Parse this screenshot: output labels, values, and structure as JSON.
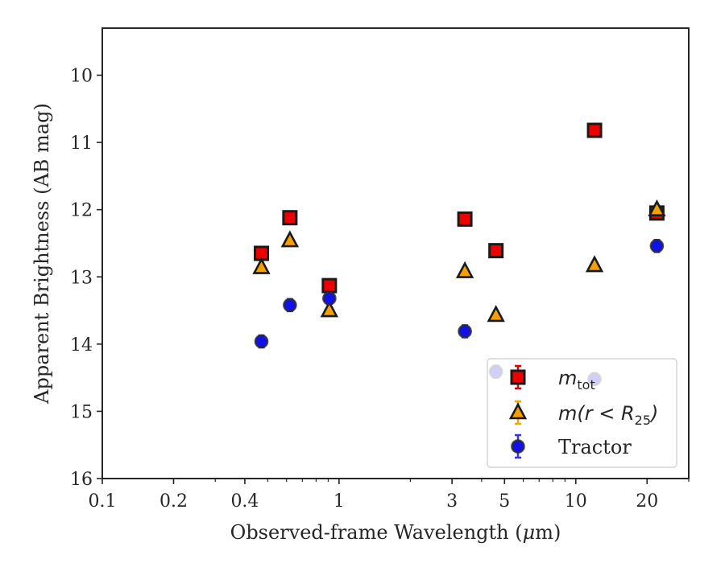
{
  "chart_data": {
    "type": "scatter",
    "xlabel_prefix": "Observed-frame Wavelength (",
    "xlabel_mu": "μ",
    "xlabel_suffix": "m)",
    "ylabel": "Apparent Brightness (AB mag)",
    "x_scale": "log",
    "xlim": [
      0.1,
      30
    ],
    "ylim": [
      16,
      9.3
    ],
    "y_inverted": true,
    "grid": false,
    "legend_position": "lower-right",
    "x_ticks": [
      {
        "value": 0.1,
        "label": "0.1"
      },
      {
        "value": 0.2,
        "label": "0.2"
      },
      {
        "value": 0.4,
        "label": "0.4"
      },
      {
        "value": 1,
        "label": "1"
      },
      {
        "value": 3,
        "label": "3"
      },
      {
        "value": 5,
        "label": "5"
      },
      {
        "value": 10,
        "label": "10"
      },
      {
        "value": 20,
        "label": "20"
      }
    ],
    "y_ticks": [
      {
        "value": 10,
        "label": "10"
      },
      {
        "value": 11,
        "label": "11"
      },
      {
        "value": 12,
        "label": "12"
      },
      {
        "value": 13,
        "label": "13"
      },
      {
        "value": 14,
        "label": "14"
      },
      {
        "value": 15,
        "label": "15"
      },
      {
        "value": 16,
        "label": "16"
      }
    ],
    "series": [
      {
        "legend_main": "m",
        "legend_sub": "tot",
        "legend_rest": "",
        "marker": "square",
        "color": "#ee0000",
        "edge_color": "#1a1a1a",
        "err_color": "#dd0000",
        "points": [
          {
            "x": 0.47,
            "y": 12.65,
            "err": 0.05
          },
          {
            "x": 0.62,
            "y": 12.12,
            "err": 0.05
          },
          {
            "x": 0.91,
            "y": 13.13,
            "err": 0.08
          },
          {
            "x": 3.4,
            "y": 12.14,
            "err": 0.04
          },
          {
            "x": 4.6,
            "y": 12.61,
            "err": 0.04
          },
          {
            "x": 12.0,
            "y": 10.82,
            "err": 0.04
          },
          {
            "x": 22.0,
            "y": 12.05,
            "err": 0.05
          }
        ]
      },
      {
        "legend_main": "m(r < R",
        "legend_sub": "25",
        "legend_rest": ")",
        "marker": "triangle",
        "color": "#f5a000",
        "edge_color": "#1a1a1a",
        "err_color": "#f0a800",
        "points": [
          {
            "x": 0.47,
            "y": 12.86,
            "err": 0.04
          },
          {
            "x": 0.62,
            "y": 12.46,
            "err": 0.04
          },
          {
            "x": 0.91,
            "y": 13.5,
            "err": 0.05
          },
          {
            "x": 3.4,
            "y": 12.92,
            "err": 0.04
          },
          {
            "x": 4.6,
            "y": 13.57,
            "err": 0.04
          },
          {
            "x": 12.0,
            "y": 12.83,
            "err": 0.04
          },
          {
            "x": 22.0,
            "y": 12.0,
            "err": 0.06
          }
        ]
      },
      {
        "legend_main": "Tractor",
        "legend_sub": "",
        "legend_rest": "",
        "marker": "circle",
        "color": "#1010ee",
        "edge_color": "#2a2a2a",
        "err_color": "#3333ee",
        "points": [
          {
            "x": 0.47,
            "y": 13.96,
            "err": 0.09
          },
          {
            "x": 0.62,
            "y": 13.42,
            "err": 0.09
          },
          {
            "x": 0.91,
            "y": 13.32,
            "err": 0.08
          },
          {
            "x": 3.4,
            "y": 13.81,
            "err": 0.09
          },
          {
            "x": 4.6,
            "y": 14.41,
            "err": 0.09
          },
          {
            "x": 12.0,
            "y": 14.52,
            "err": 0.08
          },
          {
            "x": 22.0,
            "y": 12.54,
            "err": 0.09
          }
        ]
      }
    ]
  }
}
